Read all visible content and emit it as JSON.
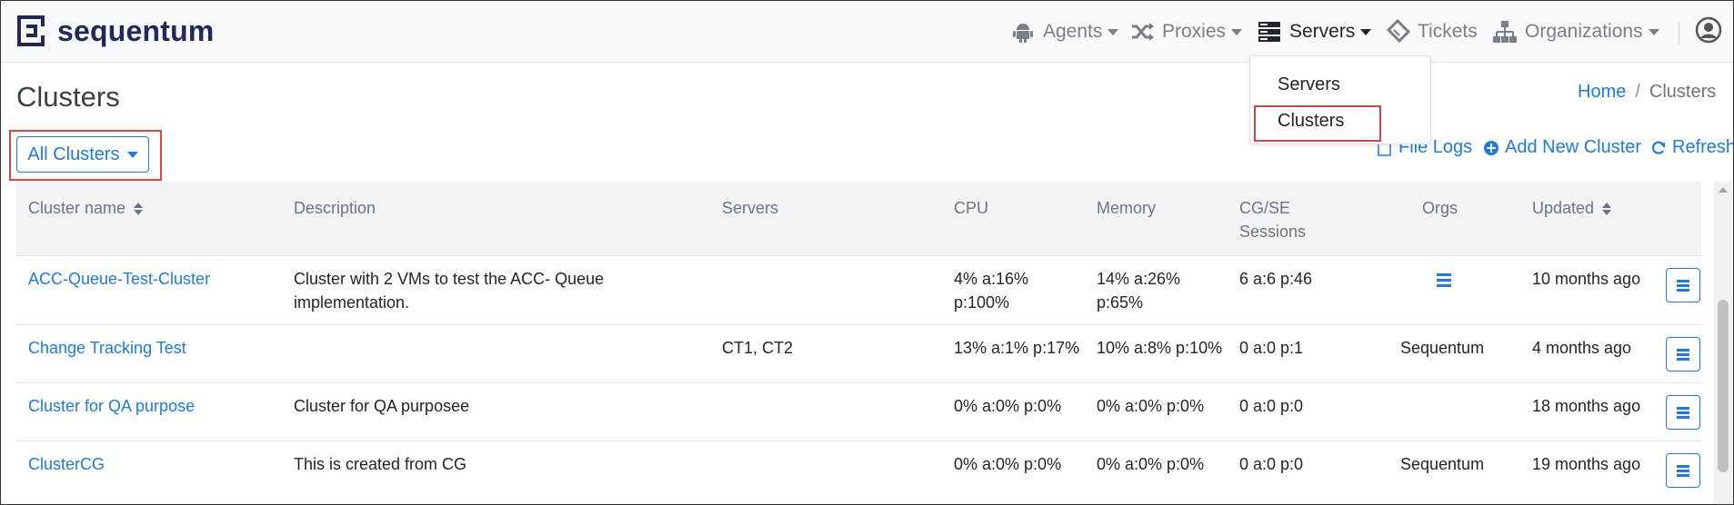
{
  "brand": {
    "name": "sequentum",
    "color": "#1f2a5a"
  },
  "nav": {
    "agents": "Agents",
    "proxies": "Proxies",
    "servers": "Servers",
    "tickets": "Tickets",
    "organizations": "Organizations"
  },
  "dropdown": {
    "items": [
      "Servers",
      "Clusters"
    ],
    "highlighted": "Clusters"
  },
  "page": {
    "title": "Clusters",
    "breadcrumb": {
      "home": "Home",
      "separator": "/",
      "current": "Clusters"
    },
    "filter_label": "All Clusters",
    "actions": {
      "file_logs": "File Logs",
      "add_new": "Add New Cluster",
      "refresh": "Refresh"
    }
  },
  "table": {
    "headers": {
      "name": "Cluster name",
      "description": "Description",
      "servers": "Servers",
      "cpu": "CPU",
      "memory": "Memory",
      "sessions_1": "CG/SE",
      "sessions_2": "Sessions",
      "orgs": "Orgs",
      "updated": "Updated"
    },
    "rows": [
      {
        "name": "ACC-Queue-Test-Cluster",
        "description_1": "Cluster with 2 VMs to test the ACC- Queue",
        "description_2": "implementation.",
        "servers": "",
        "cpu_1": "4% a:16%",
        "cpu_2": "p:100%",
        "memory_1": "14% a:26%",
        "memory_2": "p:65%",
        "sessions": "6 a:6 p:46",
        "orgs": "",
        "updated": "10 months ago"
      },
      {
        "name": "Change Tracking Test",
        "description_1": "",
        "description_2": "",
        "servers": "CT1, CT2",
        "cpu_1": "13% a:1% p:17%",
        "cpu_2": "",
        "memory_1": "10% a:8% p:10%",
        "memory_2": "",
        "sessions": "0 a:0 p:1",
        "orgs": "Sequentum",
        "updated": "4 months ago"
      },
      {
        "name": "Cluster for QA purpose",
        "description_1": "Cluster for QA purposee",
        "description_2": "",
        "servers": "",
        "cpu_1": "0% a:0% p:0%",
        "cpu_2": "",
        "memory_1": "0% a:0% p:0%",
        "memory_2": "",
        "sessions": "0 a:0 p:0",
        "orgs": "",
        "updated": "18 months ago"
      },
      {
        "name": "ClusterCG",
        "description_1": "This is created from CG",
        "description_2": "",
        "servers": "",
        "cpu_1": "0% a:0% p:0%",
        "cpu_2": "",
        "memory_1": "0% a:0% p:0%",
        "memory_2": "",
        "sessions": "0 a:0 p:0",
        "orgs": "Sequentum",
        "updated": "19 months ago"
      }
    ]
  },
  "colors": {
    "accent": "#1e7ae0",
    "highlight": "#e0403f"
  }
}
